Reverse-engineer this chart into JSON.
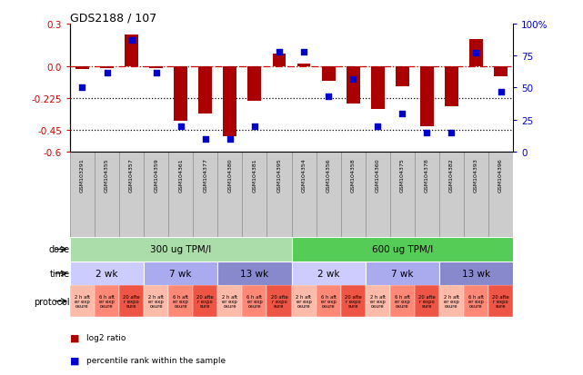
{
  "title": "GDS2188 / 107",
  "samples": [
    "GSM103291",
    "GSM104355",
    "GSM104357",
    "GSM104359",
    "GSM104361",
    "GSM104377",
    "GSM104380",
    "GSM104381",
    "GSM104395",
    "GSM104354",
    "GSM104356",
    "GSM104358",
    "GSM104360",
    "GSM104375",
    "GSM104378",
    "GSM104382",
    "GSM104393",
    "GSM104396"
  ],
  "log2_ratio": [
    -0.02,
    -0.01,
    0.22,
    -0.01,
    -0.38,
    -0.33,
    -0.49,
    -0.24,
    0.09,
    0.02,
    -0.1,
    -0.26,
    -0.3,
    -0.14,
    -0.42,
    -0.28,
    0.19,
    -0.07
  ],
  "percentile": [
    50,
    62,
    87,
    62,
    20,
    10,
    10,
    20,
    78,
    78,
    43,
    57,
    20,
    30,
    15,
    15,
    77,
    47
  ],
  "ylim_left": [
    -0.6,
    0.3
  ],
  "ylim_right": [
    0,
    100
  ],
  "dose_groups": [
    {
      "label": "300 ug TPM/l",
      "start": 0,
      "end": 9,
      "color": "#aaddaa"
    },
    {
      "label": "600 ug TPM/l",
      "start": 9,
      "end": 18,
      "color": "#55cc55"
    }
  ],
  "time_groups": [
    {
      "label": "2 wk",
      "start": 0,
      "end": 3,
      "color": "#ccccff"
    },
    {
      "label": "7 wk",
      "start": 3,
      "end": 6,
      "color": "#aaaaee"
    },
    {
      "label": "13 wk",
      "start": 6,
      "end": 9,
      "color": "#8888cc"
    },
    {
      "label": "2 wk",
      "start": 9,
      "end": 12,
      "color": "#ccccff"
    },
    {
      "label": "7 wk",
      "start": 12,
      "end": 15,
      "color": "#aaaaee"
    },
    {
      "label": "13 wk",
      "start": 15,
      "end": 18,
      "color": "#8888cc"
    }
  ],
  "protocol_labels": [
    "2 h aft\ner exp\nosure",
    "6 h aft\ner exp\nosure",
    "20 afte\nr expo\nsure"
  ],
  "protocol_colors": [
    "#ffbbaa",
    "#ff8877",
    "#ee5544"
  ],
  "bar_color": "#aa0000",
  "dot_color": "#0000cc",
  "dot_size": 22,
  "bar_width": 0.55,
  "left_tick_color": "#cc0000",
  "right_tick_color": "#0000cc",
  "left_ticks": [
    0.3,
    0.0,
    -0.225,
    -0.45,
    -0.6
  ],
  "right_ticks": [
    100,
    75,
    50,
    25,
    0
  ],
  "right_tick_labels": [
    "100%",
    "75",
    "50",
    "25",
    "0"
  ],
  "xticklabel_bg": "#cccccc",
  "xticklabel_border": "#888888"
}
